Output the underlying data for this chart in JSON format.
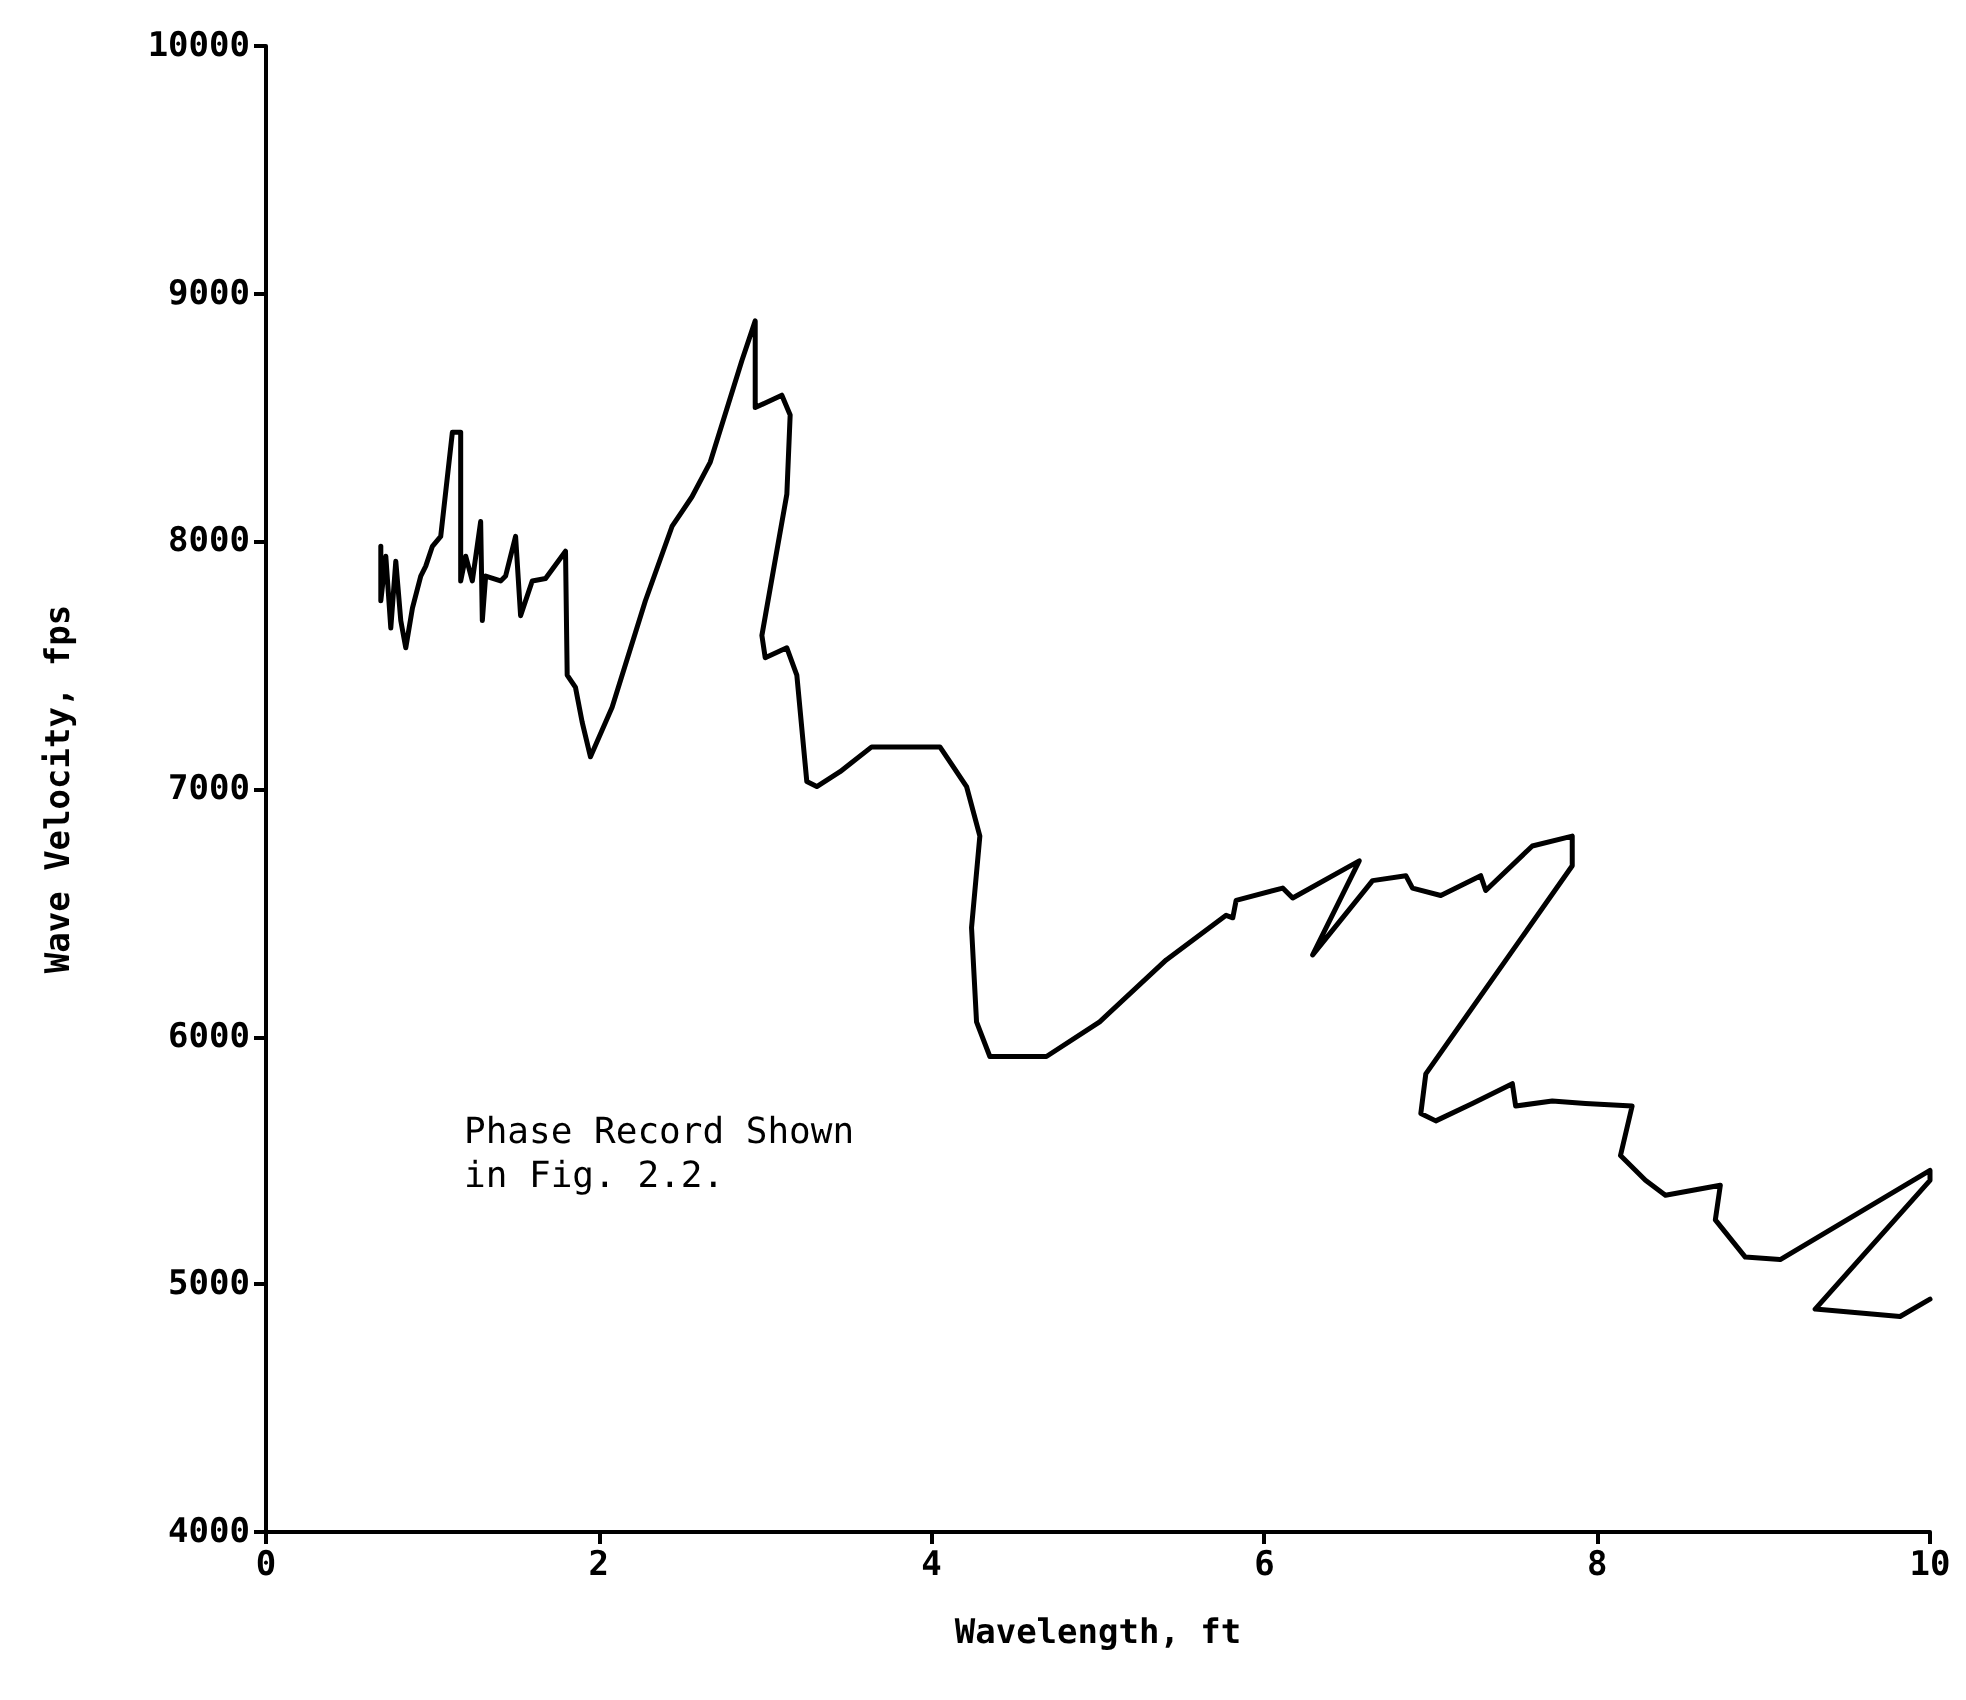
{
  "chart_data": {
    "type": "line",
    "xlabel": "Wavelength, ft",
    "ylabel": "Wave Velocity, fps",
    "annotations": [
      "Phase Record Shown\nin Fig. 2.2."
    ],
    "xlim": [
      0,
      10
    ],
    "xticks": [
      0,
      2,
      4,
      6,
      8,
      10
    ],
    "ylim": [
      4000,
      10000
    ],
    "yticks": [
      4000,
      5000,
      6000,
      7000,
      8000,
      9000,
      10000
    ],
    "grid": false,
    "marker": "none",
    "line_style": "solid",
    "series": [
      {
        "color": "#000000",
        "x": [
          0.69,
          0.69,
          0.72,
          0.75,
          0.78,
          0.81,
          0.84,
          0.88,
          0.93,
          0.96,
          1.0,
          1.05,
          1.12,
          1.17,
          1.17,
          1.2,
          1.24,
          1.29,
          1.3,
          1.32,
          1.41,
          1.44,
          1.5,
          1.53,
          1.6,
          1.68,
          1.8,
          1.81,
          1.86,
          1.9,
          1.95,
          2.08,
          2.28,
          2.44,
          2.56,
          2.67,
          2.86,
          2.94,
          2.94,
          3.1,
          3.15,
          3.13,
          2.98,
          3.0,
          3.13,
          3.19,
          3.25,
          3.31,
          3.45,
          3.64,
          4.05,
          4.21,
          4.29,
          4.24,
          4.27,
          4.35,
          4.69,
          5.01,
          5.41,
          5.77,
          5.81,
          5.83,
          6.11,
          6.17,
          6.57,
          6.29,
          6.65,
          6.85,
          6.89,
          7.06,
          7.3,
          7.33,
          7.61,
          7.85,
          7.85,
          6.97,
          6.94,
          7.03,
          7.25,
          7.49,
          7.51,
          7.73,
          7.93,
          8.21,
          8.14,
          8.29,
          8.41,
          8.74,
          8.71,
          8.89,
          9.1,
          10.0,
          10.0,
          9.31,
          9.82,
          10.0
        ],
        "values": [
          7980,
          7760,
          7940,
          7650,
          7920,
          7680,
          7570,
          7730,
          7860,
          7900,
          7980,
          8020,
          8440,
          8440,
          7840,
          7940,
          7840,
          8080,
          7680,
          7860,
          7840,
          7860,
          8020,
          7700,
          7840,
          7850,
          7960,
          7460,
          7410,
          7270,
          7130,
          7330,
          7760,
          8060,
          8180,
          8320,
          8730,
          8890,
          8540,
          8590,
          8510,
          8190,
          7620,
          7530,
          7570,
          7460,
          7030,
          7010,
          7070,
          7170,
          7170,
          7010,
          6810,
          6440,
          6060,
          5920,
          5920,
          6060,
          6310,
          6490,
          6480,
          6550,
          6600,
          6560,
          6710,
          6330,
          6630,
          6650,
          6600,
          6570,
          6650,
          6590,
          6770,
          6810,
          6690,
          5850,
          5690,
          5660,
          5730,
          5810,
          5720,
          5740,
          5730,
          5720,
          5520,
          5420,
          5360,
          5400,
          5260,
          5110,
          5100,
          5460,
          5420,
          4900,
          4870,
          4940
        ]
      }
    ]
  }
}
